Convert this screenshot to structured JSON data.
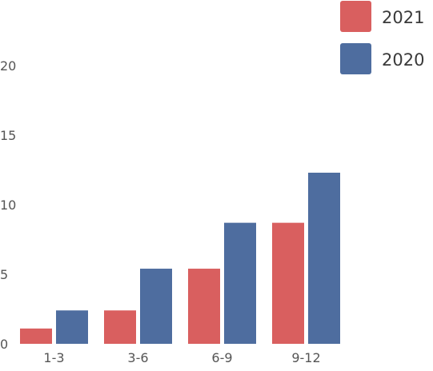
{
  "chart_data": {
    "type": "bar",
    "categories": [
      "1-3",
      "3-6",
      "6-9",
      "9-12"
    ],
    "series": [
      {
        "name": "2021",
        "values": [
          1.1,
          2.4,
          5.4,
          8.7
        ],
        "color": "#d95f5f"
      },
      {
        "name": "2020",
        "values": [
          2.4,
          5.4,
          8.7,
          12.3
        ],
        "color": "#4e6d9f"
      }
    ],
    "y_ticks": [
      0,
      5,
      10,
      15,
      20
    ],
    "ylim": [
      0,
      20
    ],
    "grid": false,
    "legend_position": "top-right",
    "title": "",
    "xlabel": "",
    "ylabel": ""
  }
}
